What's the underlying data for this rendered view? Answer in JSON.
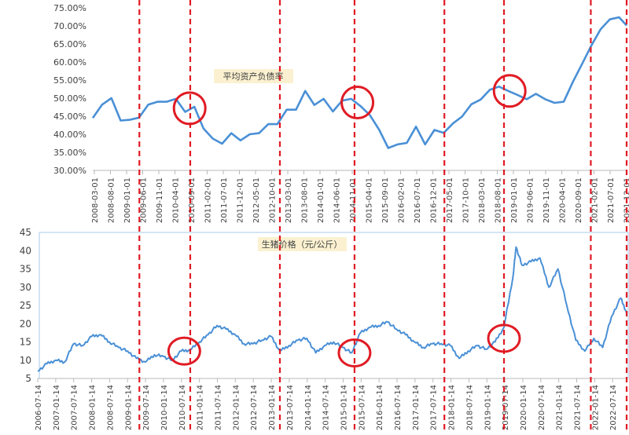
{
  "colors": {
    "line": "#4a90d6",
    "axis": "#b9b9b9",
    "frame": "#a9cbe9",
    "marker": "#e01b24",
    "label_box": "#fbf1d0",
    "text": "#404040"
  },
  "chart_data": [
    {
      "type": "line",
      "title": "平均资产负债率",
      "ylim": [
        0.3,
        0.75
      ],
      "yticks": [
        0.3,
        0.35,
        0.4,
        0.45,
        0.5,
        0.55,
        0.6,
        0.65,
        0.7,
        0.75
      ],
      "ytick_labels": [
        "30.00%",
        "35.00%",
        "40.00%",
        "45.00%",
        "50.00%",
        "55.00%",
        "60.00%",
        "65.00%",
        "70.00%",
        "75.00%"
      ],
      "x_tick_labels": [
        "2008-03-01",
        "2008-08-01",
        "2009-01-01",
        "2009-06-01",
        "2009-11-01",
        "2010-04-01",
        "2010-09-01",
        "2011-02-01",
        "2011-07-01",
        "2011-12-01",
        "2012-05-01",
        "2012-10-01",
        "2013-03-01",
        "2013-08-01",
        "2014-01-01",
        "2014-06-01",
        "2014-11-01",
        "2015-04-01",
        "2015-09-01",
        "2016-02-01",
        "2016-07-01",
        "2016-12-01",
        "2017-05-01",
        "2017-10-01",
        "2018-03-01",
        "2018-08-01",
        "2019-01-01",
        "2019-06-01",
        "2019-11-01",
        "2020-04-01",
        "2020-09-01",
        "2021-02-01",
        "2021-07-01",
        "2021-12-01",
        "2022-05-01"
      ],
      "x_range": [
        "2008-03-01",
        "2022-08-15"
      ],
      "series": [
        {
          "x": [
            "2008-03-01",
            "2008-06-01",
            "2008-09-01",
            "2008-12-01",
            "2009-03-01",
            "2009-06-01",
            "2009-09-01",
            "2009-12-01",
            "2010-03-01",
            "2010-06-01",
            "2010-09-01",
            "2010-12-01",
            "2011-03-01",
            "2011-06-01",
            "2011-09-01",
            "2011-12-01",
            "2012-03-01",
            "2012-06-01",
            "2012-09-01",
            "2012-12-01",
            "2013-03-01",
            "2013-06-01",
            "2013-09-01",
            "2013-12-01",
            "2014-03-01",
            "2014-06-01",
            "2014-09-01",
            "2014-12-01",
            "2015-03-01",
            "2015-06-01",
            "2015-09-01",
            "2015-12-01",
            "2016-03-01",
            "2016-06-01",
            "2016-09-01",
            "2016-12-01",
            "2017-03-01",
            "2017-06-01",
            "2017-09-01",
            "2017-12-01",
            "2018-03-01",
            "2018-06-01",
            "2018-09-01",
            "2018-12-01",
            "2019-03-01",
            "2019-06-01",
            "2019-09-01",
            "2019-12-01",
            "2020-03-01",
            "2020-06-01",
            "2020-09-01",
            "2020-12-01",
            "2021-03-01",
            "2021-06-01",
            "2021-09-01",
            "2021-12-01",
            "2022-03-01",
            "2022-06-01",
            "2022-08-15"
          ],
          "values": [
            0.445,
            0.482,
            0.5,
            0.438,
            0.44,
            0.446,
            0.482,
            0.49,
            0.49,
            0.498,
            0.462,
            0.476,
            0.416,
            0.388,
            0.374,
            0.403,
            0.383,
            0.4,
            0.403,
            0.428,
            0.428,
            0.468,
            0.468,
            0.52,
            0.481,
            0.498,
            0.463,
            0.493,
            0.498,
            0.478,
            0.453,
            0.413,
            0.362,
            0.372,
            0.376,
            0.421,
            0.372,
            0.412,
            0.404,
            0.43,
            0.449,
            0.483,
            0.496,
            0.523,
            0.532,
            0.52,
            0.509,
            0.497,
            0.512,
            0.497,
            0.487,
            0.49,
            0.545,
            0.595,
            0.646,
            0.691,
            0.718,
            0.724,
            0.701
          ]
        }
      ],
      "annotations": [
        {
          "type": "circle",
          "x": "2010-10-15",
          "y": 0.472
        },
        {
          "type": "circle",
          "x": "2015-05-01",
          "y": 0.488
        },
        {
          "type": "circle",
          "x": "2019-06-15",
          "y": 0.52
        }
      ]
    },
    {
      "type": "line",
      "title": "生猪价格（元/公斤）",
      "ylim": [
        5,
        45
      ],
      "yticks": [
        5,
        10,
        15,
        20,
        25,
        30,
        35,
        40,
        45
      ],
      "ytick_labels": [
        "5",
        "10",
        "15",
        "20",
        "25",
        "30",
        "35",
        "40",
        "45"
      ],
      "x_tick_labels": [
        "2006-07-14",
        "2007-01-14",
        "2007-07-14",
        "2008-01-14",
        "2008-07-14",
        "2009-01-14",
        "2009-07-14",
        "2010-01-14",
        "2010-07-14",
        "2011-01-14",
        "2011-07-14",
        "2012-01-14",
        "2012-07-14",
        "2013-01-14",
        "2013-07-14",
        "2014-01-14",
        "2014-07-14",
        "2015-01-14",
        "2015-07-14",
        "2016-01-14",
        "2016-07-14",
        "2017-01-14",
        "2017-07-14",
        "2018-01-14",
        "2018-07-14",
        "2019-01-14",
        "2019-07-14",
        "2020-01-14",
        "2020-07-14",
        "2021-01-14",
        "2021-07-14",
        "2022-01-14",
        "2022-07-14"
      ],
      "x_range": [
        "2006-07-14",
        "2022-12-14"
      ],
      "series": [
        {
          "x": [
            "2006-07-14",
            "2006-10-14",
            "2007-01-14",
            "2007-04-14",
            "2007-07-14",
            "2007-10-14",
            "2008-01-14",
            "2008-04-14",
            "2008-07-14",
            "2008-10-14",
            "2009-01-14",
            "2009-04-14",
            "2009-07-14",
            "2009-10-14",
            "2010-01-14",
            "2010-04-14",
            "2010-07-14",
            "2010-10-14",
            "2011-01-14",
            "2011-04-14",
            "2011-07-14",
            "2011-10-14",
            "2012-01-14",
            "2012-04-14",
            "2012-07-14",
            "2012-10-14",
            "2013-01-14",
            "2013-04-14",
            "2013-07-14",
            "2013-10-14",
            "2014-01-14",
            "2014-04-14",
            "2014-07-14",
            "2014-10-14",
            "2015-01-14",
            "2015-04-14",
            "2015-07-14",
            "2015-10-14",
            "2016-01-14",
            "2016-04-14",
            "2016-07-14",
            "2016-10-14",
            "2017-01-14",
            "2017-04-14",
            "2017-07-14",
            "2017-10-14",
            "2018-01-14",
            "2018-04-14",
            "2018-07-14",
            "2018-10-14",
            "2019-01-14",
            "2019-04-14",
            "2019-07-14",
            "2019-10-14",
            "2019-11-14",
            "2020-01-14",
            "2020-04-14",
            "2020-07-14",
            "2020-10-14",
            "2021-01-14",
            "2021-04-14",
            "2021-07-14",
            "2021-10-14",
            "2022-01-14",
            "2022-04-14",
            "2022-07-14",
            "2022-10-14",
            "2022-12-14"
          ],
          "values": [
            7.0,
            9.0,
            10.0,
            9.5,
            14.5,
            14.0,
            16.5,
            17.0,
            15.0,
            13.5,
            12.5,
            10.5,
            9.5,
            11.5,
            11.0,
            10.0,
            12.5,
            12.8,
            15.0,
            17.0,
            19.5,
            18.5,
            17.0,
            14.5,
            14.5,
            15.5,
            16.5,
            12.5,
            14.0,
            15.5,
            16.0,
            12.0,
            14.0,
            15.0,
            13.5,
            12.0,
            17.5,
            19.0,
            19.5,
            20.5,
            18.5,
            17.0,
            15.0,
            13.5,
            14.5,
            14.5,
            14.0,
            10.5,
            12.5,
            14.0,
            13.0,
            15.0,
            19.0,
            33.0,
            41.0,
            36.0,
            37.0,
            38.0,
            30.0,
            35.0,
            25.0,
            15.5,
            12.5,
            16.0,
            13.5,
            22.0,
            27.0,
            23.0
          ]
        }
      ],
      "annotations": [
        {
          "type": "circle",
          "x": "2010-08-14",
          "y": 12.5
        },
        {
          "type": "circle",
          "x": "2015-05-14",
          "y": 12.0
        },
        {
          "type": "circle",
          "x": "2019-07-14",
          "y": 16.0
        }
      ]
    }
  ],
  "markers": {
    "dates": [
      "2009-05-14",
      "2010-10-14",
      "2013-04-14",
      "2015-05-14",
      "2017-11-14",
      "2019-07-14",
      "2021-12-14",
      "2022-12-14"
    ]
  }
}
